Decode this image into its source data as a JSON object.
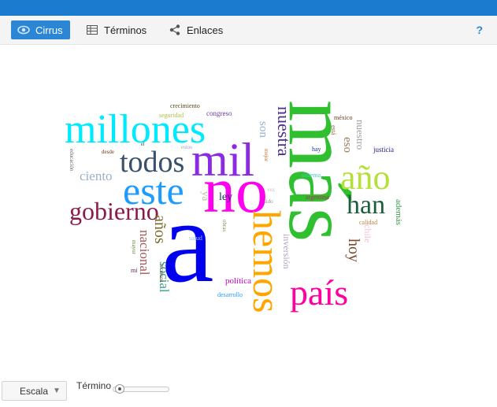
{
  "toolbar": {
    "tabs": [
      {
        "label": "Cirrus",
        "icon": "eye-icon",
        "active": true
      },
      {
        "label": "Términos",
        "icon": "table-icon",
        "active": false
      },
      {
        "label": "Enlaces",
        "icon": "share-icon",
        "active": false
      }
    ],
    "help": "?"
  },
  "cloud": {
    "words": [
      {
        "text": "más",
        "color": "#2fbf2f"
      },
      {
        "text": "a",
        "color": "#0000ee"
      },
      {
        "text": "no",
        "color": "#ff00ee"
      },
      {
        "text": "mil",
        "color": "#8a2be2"
      },
      {
        "text": "millones",
        "color": "#00eaff"
      },
      {
        "text": "este",
        "color": "#1e9bff"
      },
      {
        "text": "todos",
        "color": "#39506b"
      },
      {
        "text": "gobierno",
        "color": "#8b1a4a"
      },
      {
        "text": "hemos",
        "color": "#ffa500"
      },
      {
        "text": "país",
        "color": "#ff00a0"
      },
      {
        "text": "año",
        "color": "#b5e03a"
      },
      {
        "text": "han",
        "color": "#1b5e3a"
      },
      {
        "text": "nuestra",
        "color": "#4b2c8f"
      },
      {
        "text": "años",
        "color": "#7a6a2a"
      },
      {
        "text": "nacional",
        "color": "#a35a5a"
      },
      {
        "text": "social",
        "color": "#3aa08a"
      },
      {
        "text": "hoy",
        "color": "#7a4a2a"
      },
      {
        "text": "ciento",
        "color": "#9ab0c8"
      },
      {
        "text": "inversión",
        "color": "#b0a0c0"
      },
      {
        "text": "nuestro",
        "color": "#a0a0a0"
      },
      {
        "text": "eso",
        "color": "#9a7a5a"
      },
      {
        "text": "son",
        "color": "#9ab0d0"
      },
      {
        "text": "ley",
        "color": "#1a2a6a"
      },
      {
        "text": "ya",
        "color": "#b0c0a0"
      },
      {
        "text": "chile",
        "color": "#f0c0d0"
      },
      {
        "text": "además",
        "color": "#3aa04a"
      },
      {
        "text": "política",
        "color": "#cc00cc"
      },
      {
        "text": "crecimiento",
        "color": "#5a4a1a"
      },
      {
        "text": "congreso",
        "color": "#6a3aa0"
      },
      {
        "text": "seguridad",
        "color": "#b0c040"
      },
      {
        "text": "méxico",
        "color": "#6a3a1a"
      },
      {
        "text": "hay",
        "color": "#1a3a8a"
      },
      {
        "text": "justicia",
        "color": "#1a1a8a"
      },
      {
        "text": "está",
        "color": "#8a6a3a"
      },
      {
        "text": "sistema",
        "color": "#40d0c0"
      },
      {
        "text": "argentina",
        "color": "#cc2060"
      },
      {
        "text": "calidad",
        "color": "#c08040"
      },
      {
        "text": "desde",
        "color": "#6a3a1a"
      },
      {
        "text": "estos",
        "color": "#a0a0c0"
      },
      {
        "text": "educación",
        "color": "#6a6a6a"
      },
      {
        "text": "mejor",
        "color": "#c07030"
      },
      {
        "text": "vez",
        "color": "#c0c0d0"
      },
      {
        "text": "sido",
        "color": "#909090"
      },
      {
        "text": "salud",
        "color": "#a0c0e0"
      },
      {
        "text": "obras",
        "color": "#8a8a6a"
      },
      {
        "text": "mayor",
        "color": "#5a8a3a"
      },
      {
        "text": "mi",
        "color": "#5a1a5a"
      },
      {
        "text": "recursos",
        "color": "#6a4a2a"
      },
      {
        "text": "desarrollo",
        "color": "#1e9bff"
      },
      {
        "text": "el",
        "color": "#333333"
      }
    ]
  },
  "controls": {
    "scale_label": "Escala",
    "terms_label": "Términos:",
    "terms_slider_value": 0.05
  }
}
